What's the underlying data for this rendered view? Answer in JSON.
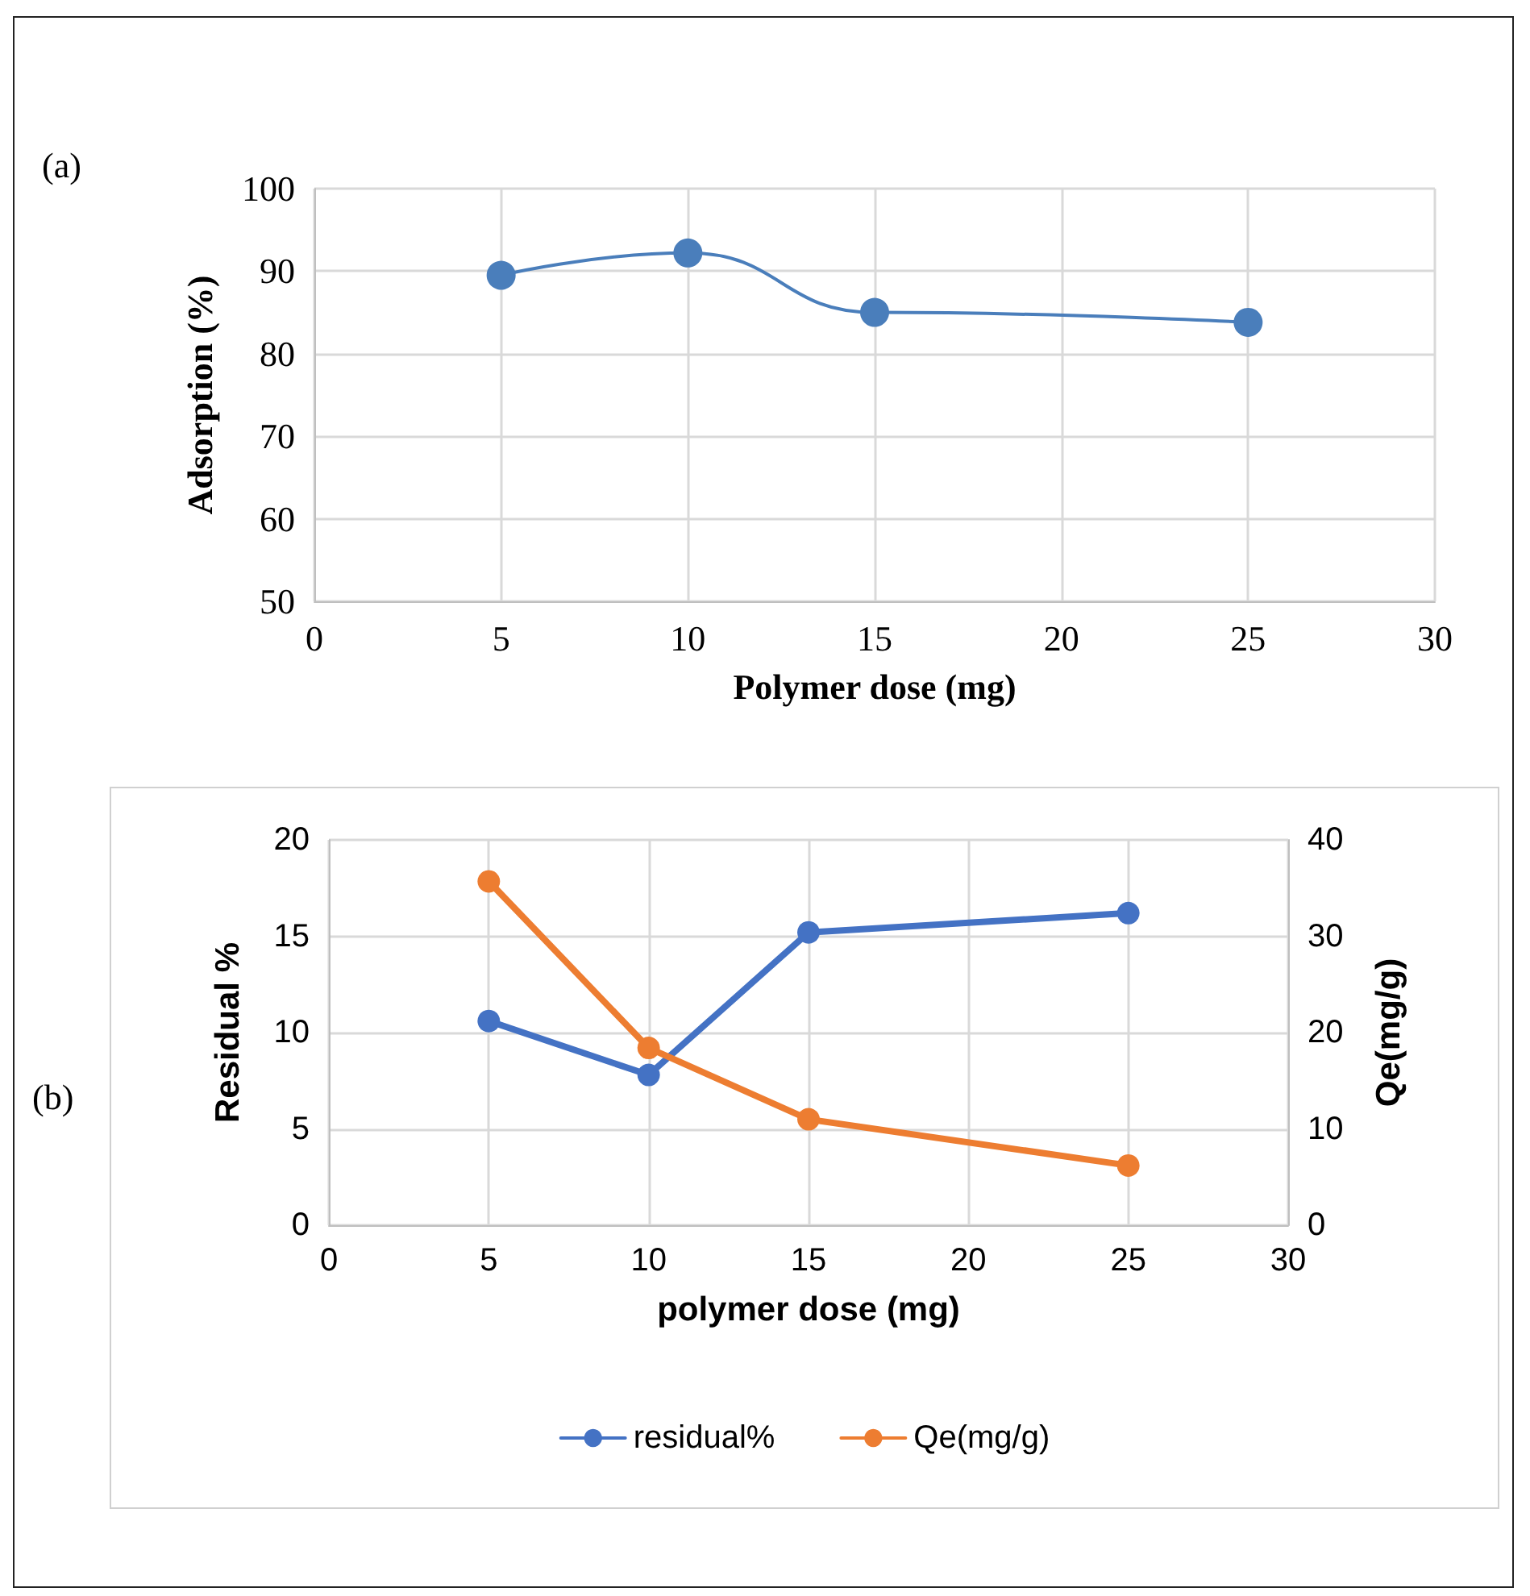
{
  "chart_data": [
    {
      "type": "line",
      "xlabel": "Polymer dose (mg)",
      "ylabel": "Adsorption (%)",
      "annotations": [
        "(a)"
      ],
      "x": [
        5,
        10,
        15,
        25
      ],
      "series": [
        {
          "color": "#4a7ebb",
          "values": [
            89.5,
            92.2,
            85.0,
            83.8
          ]
        }
      ],
      "xlim": [
        0,
        30
      ],
      "xticks": [
        0,
        5,
        10,
        15,
        20,
        25,
        30
      ],
      "ylim": [
        50,
        100
      ],
      "yticks": [
        50,
        60,
        70,
        80,
        90,
        100
      ],
      "grid": true,
      "marker": "circle",
      "legend": false
    },
    {
      "type": "line",
      "xlabel": "polymer dose (mg)",
      "ylabel": "Residual %",
      "y2label": "Qe(mg/g)",
      "annotations": [
        "(b)"
      ],
      "x": [
        5,
        10,
        15,
        25
      ],
      "series": [
        {
          "name": "residual%",
          "color": "#4472c4",
          "values": [
            10.6,
            7.8,
            15.2,
            16.2
          ]
        },
        {
          "name": "Qe(mg/g)",
          "color": "#ed7d31",
          "values": [
            35.7,
            18.4,
            11.0,
            6.2
          ],
          "axis": "y2"
        }
      ],
      "xlim": [
        0,
        30
      ],
      "xticks": [
        0,
        5,
        10,
        15,
        20,
        25,
        30
      ],
      "ylim": [
        0,
        20
      ],
      "yticks": [
        0,
        5,
        10,
        15,
        20
      ],
      "y2lim": [
        0,
        40
      ],
      "y2ticks": [
        0,
        10,
        20,
        30,
        40
      ],
      "grid": true,
      "marker": "circle",
      "legend": "bottom"
    }
  ]
}
